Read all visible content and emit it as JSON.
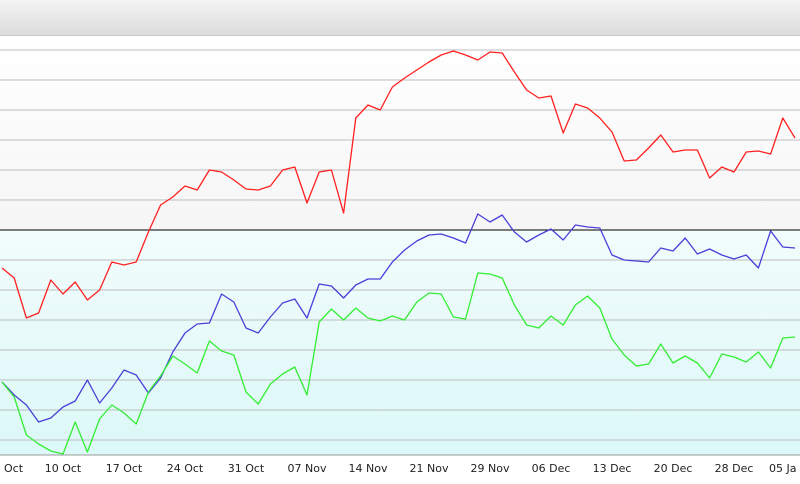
{
  "chart_data": {
    "type": "line",
    "categories": [
      "Oct",
      null,
      null,
      null,
      null,
      "10 Oct",
      null,
      null,
      null,
      null,
      "17 Oct",
      null,
      null,
      null,
      null,
      "24 Oct",
      null,
      null,
      null,
      null,
      "31 Oct",
      null,
      null,
      null,
      null,
      "07 Nov",
      null,
      null,
      null,
      null,
      "14 Nov",
      null,
      null,
      null,
      null,
      "21 Nov",
      null,
      null,
      null,
      null,
      "29 Nov",
      null,
      null,
      null,
      null,
      "06 Dec",
      null,
      null,
      null,
      null,
      "13 Dec",
      null,
      null,
      null,
      null,
      "20 Dec",
      null,
      null,
      null,
      null,
      "28 Dec",
      null,
      null,
      null,
      "05 Ja",
      null
    ],
    "series": [
      {
        "color": "#ff2020",
        "values": [
          187,
          177,
          137,
          142,
          175,
          161,
          173,
          155,
          165,
          193,
          190,
          193,
          223,
          250,
          258,
          269,
          265,
          285,
          283,
          275,
          266,
          265,
          269,
          285,
          288,
          252,
          283,
          285,
          242,
          337,
          350,
          345,
          368,
          377,
          385,
          393,
          400,
          404,
          400,
          395,
          403,
          402,
          383,
          365,
          357,
          359,
          322,
          351,
          347,
          337,
          323,
          294,
          295,
          307,
          320,
          303,
          305,
          305,
          277,
          288,
          283,
          303,
          304,
          301,
          337,
          317
        ]
      },
      {
        "color": "#4a3fd8",
        "values": [
          73,
          60,
          50,
          33,
          37,
          48,
          54,
          75,
          52,
          67,
          85,
          80,
          62,
          77,
          103,
          122,
          131,
          132,
          161,
          153,
          127,
          122,
          138,
          152,
          156,
          137,
          171,
          169,
          157,
          170,
          176,
          176,
          193,
          205,
          214,
          220,
          221,
          217,
          212,
          241,
          233,
          240,
          223,
          213,
          220,
          226,
          215,
          230,
          228,
          227,
          200,
          195,
          194,
          193,
          207,
          204,
          217,
          201,
          206,
          200,
          196,
          200,
          187,
          224,
          208,
          207
        ]
      },
      {
        "color": "#33ee33",
        "values": [
          73,
          58,
          20,
          11,
          4,
          1,
          33,
          3,
          36,
          50,
          42,
          31,
          63,
          79,
          99,
          91,
          82,
          114,
          104,
          100,
          63,
          51,
          71,
          81,
          88,
          60,
          133,
          146,
          135,
          147,
          137,
          134,
          139,
          135,
          153,
          162,
          161,
          138,
          136,
          182,
          181,
          177,
          150,
          130,
          127,
          139,
          130,
          150,
          159,
          147,
          116,
          100,
          89,
          91,
          111,
          92,
          99,
          92,
          77,
          101,
          98,
          93,
          103,
          87,
          117,
          118
        ]
      }
    ],
    "ylim": [
      0,
      420
    ],
    "yticks": [
      15,
      45,
      75,
      105,
      135,
      165,
      195,
      225,
      255,
      285,
      315,
      345,
      375,
      405
    ],
    "reference_line": 225,
    "grid": true
  }
}
